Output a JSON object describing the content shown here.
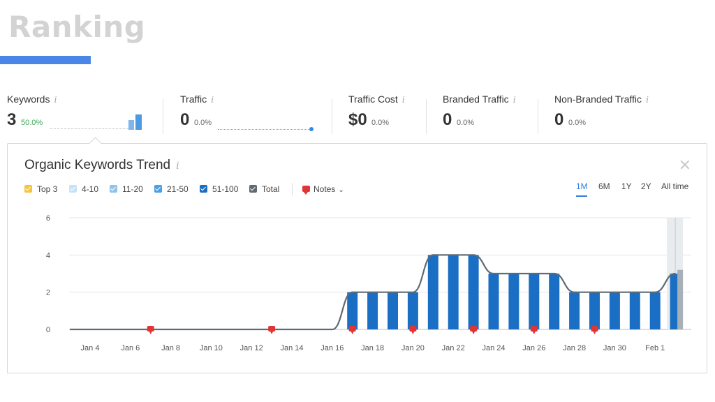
{
  "slide": {
    "title": "Ranking"
  },
  "metrics": [
    {
      "label": "Keywords",
      "info": "i",
      "value": "3",
      "change": "50.0%"
    },
    {
      "label": "Traffic",
      "info": "i",
      "value": "0",
      "change": "0.0%"
    },
    {
      "label": "Traffic Cost",
      "info": "i",
      "value": "$0",
      "change": "0.0%"
    },
    {
      "label": "Branded Traffic",
      "info": "i",
      "value": "0",
      "change": "0.0%"
    },
    {
      "label": "Non-Branded Traffic",
      "info": "i",
      "value": "0",
      "change": "0.0%"
    }
  ],
  "panel": {
    "title": "Organic Keywords Trend",
    "info": "i",
    "close": "×",
    "legend": [
      {
        "label": "Top 3",
        "color": "#f4c542"
      },
      {
        "label": "4-10",
        "color": "#c7e2f7"
      },
      {
        "label": "11-20",
        "color": "#8ec3ee"
      },
      {
        "label": "21-50",
        "color": "#4aa0e6"
      },
      {
        "label": "51-100",
        "color": "#1a6fc4"
      },
      {
        "label": "Total",
        "color": "#5f6b72"
      }
    ],
    "notes_label": "Notes",
    "notes_chevron": "⌄",
    "ranges": [
      "1M",
      "6M",
      "1Y",
      "2Y",
      "All time"
    ],
    "active_range": "1M"
  },
  "chart_data": {
    "type": "bar",
    "title": "Organic Keywords Trend",
    "ylim": [
      0,
      6
    ],
    "yticks": [
      0,
      2,
      4,
      6
    ],
    "xticks": [
      "Jan 4",
      "Jan 6",
      "Jan 8",
      "Jan 10",
      "Jan 12",
      "Jan 14",
      "Jan 16",
      "Jan 18",
      "Jan 20",
      "Jan 22",
      "Jan 24",
      "Jan 26",
      "Jan 28",
      "Jan 30",
      "Feb 1"
    ],
    "bar_color": "#1a6fc4",
    "line_color": "#5f6b72",
    "note_color": "#e03535",
    "grid": true,
    "series": [
      {
        "name": "51-100",
        "x": [
          "Jan 17",
          "Jan 18",
          "Jan 19",
          "Jan 20",
          "Jan 21",
          "Jan 22",
          "Jan 23",
          "Jan 24",
          "Jan 25",
          "Jan 26",
          "Jan 27",
          "Jan 28",
          "Jan 29",
          "Jan 30",
          "Jan 31",
          "Feb 1",
          "Feb 2"
        ],
        "values": [
          2,
          2,
          2,
          2,
          4,
          4,
          4,
          3,
          3,
          3,
          3,
          2,
          2,
          2,
          2,
          2,
          3
        ]
      },
      {
        "name": "Total",
        "x": [
          "Jan 3",
          "Jan 16",
          "Jan 17",
          "Jan 18",
          "Jan 19",
          "Jan 20",
          "Jan 21",
          "Jan 22",
          "Jan 23",
          "Jan 24",
          "Jan 25",
          "Jan 26",
          "Jan 27",
          "Jan 28",
          "Jan 29",
          "Jan 30",
          "Jan 31",
          "Feb 1",
          "Feb 2"
        ],
        "values": [
          0,
          0,
          2,
          2,
          2,
          2,
          4,
          4,
          4,
          3,
          3,
          3,
          3,
          2,
          2,
          2,
          2,
          2,
          3
        ]
      }
    ],
    "notes": [
      "Jan 7",
      "Jan 13",
      "Jan 17",
      "Jan 20",
      "Jan 23",
      "Jan 26",
      "Jan 29"
    ]
  }
}
